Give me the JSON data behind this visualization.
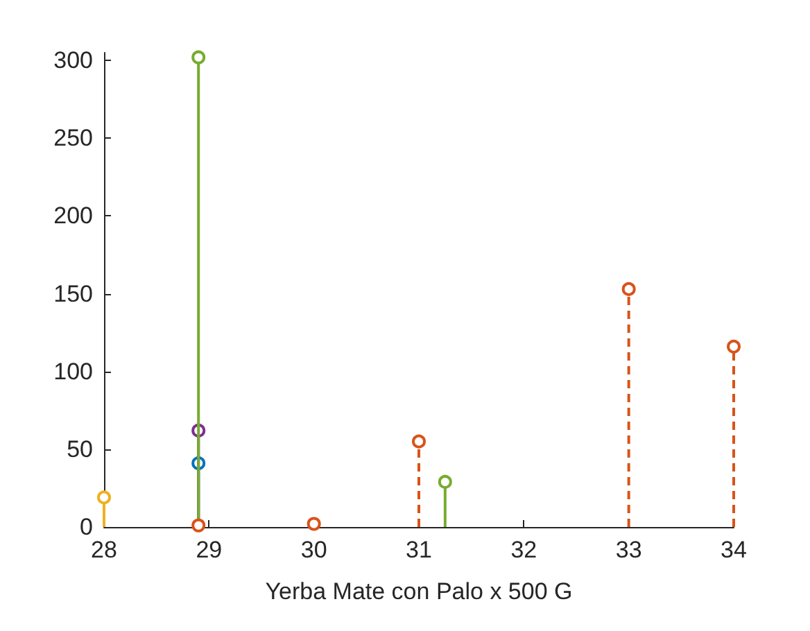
{
  "chart_data": {
    "type": "lollipop",
    "xlabel": "Yerba Mate con Palo x 500 G",
    "xlim": [
      28,
      34
    ],
    "xticks": [
      28,
      29,
      30,
      31,
      32,
      33,
      34
    ],
    "ylim": [
      0,
      305
    ],
    "yticks": [
      0,
      50,
      100,
      150,
      200,
      250,
      300
    ],
    "grid": false,
    "marker": "circle",
    "series": [
      {
        "color": "#edb120",
        "line_style": "solid",
        "x": [
          28
        ],
        "values": [
          19
        ]
      },
      {
        "color": "#0072bd",
        "line_style": "solid",
        "x": [
          28.9
        ],
        "values": [
          41
        ]
      },
      {
        "color": "#7e2f8e",
        "line_style": "solid",
        "x": [
          28.9
        ],
        "values": [
          62
        ]
      },
      {
        "color": "#77ac30",
        "line_style": "solid",
        "x": [
          28.9,
          31.25
        ],
        "values": [
          302,
          29
        ]
      },
      {
        "color": "#d95319",
        "line_style": "dashed",
        "x": [
          28.9,
          30,
          31,
          33,
          34
        ],
        "values": [
          1,
          2,
          55,
          153,
          116
        ]
      }
    ]
  }
}
